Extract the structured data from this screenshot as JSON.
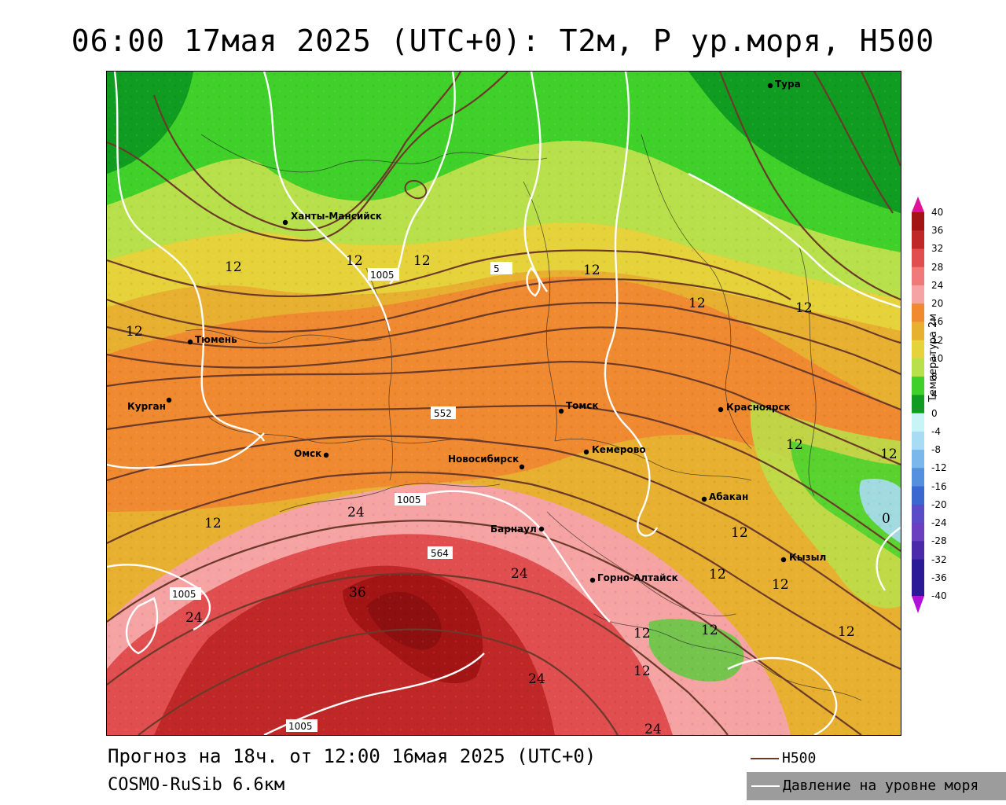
{
  "title": "06:00 17мая 2025 (UTC+0): Т2м, Р ур.моря, Н500",
  "footer": {
    "forecast": "Прогноз на 18ч. от 12:00 16мая 2025 (UTC+0)",
    "model": "COSMO-RuSib 6.6км"
  },
  "legend": {
    "h500": "Н500",
    "pressure": "Давление на уровне моря"
  },
  "colorbar": {
    "title": "Температура 2м",
    "ticks": [
      "40",
      "36",
      "32",
      "28",
      "24",
      "20",
      "16",
      "12",
      "10",
      "8",
      "4",
      "0",
      "-4",
      "-8",
      "-12",
      "-16",
      "-20",
      "-24",
      "-28",
      "-32",
      "-36",
      "-40"
    ],
    "colors": [
      "#e0119a",
      "#a31515",
      "#c02828",
      "#e04e50",
      "#f07a7a",
      "#f5a3a3",
      "#f08a30",
      "#e8b030",
      "#e6d23a",
      "#b8e04a",
      "#3fd12a",
      "#0f9c20",
      "#c8f4f8",
      "#a8dcf4",
      "#7ab8ec",
      "#5590e0",
      "#3868d0",
      "#5a4cc8",
      "#6a40c0",
      "#4a2aa8",
      "#2a1a98",
      "#b010d8"
    ]
  },
  "cities": [
    {
      "name": "Тура"
    },
    {
      "name": "Ханты-Мансийск"
    },
    {
      "name": "Тюмень"
    },
    {
      "name": "Курган"
    },
    {
      "name": "Омск"
    },
    {
      "name": "Новосибирск"
    },
    {
      "name": "Томск"
    },
    {
      "name": "Кемерово"
    },
    {
      "name": "Красноярск"
    },
    {
      "name": "Абакан"
    },
    {
      "name": "Барнаул"
    },
    {
      "name": "Горно-Алтайск"
    },
    {
      "name": "Кызыл"
    }
  ],
  "isotherm_labels": [
    "12",
    "12",
    "12",
    "12",
    "12",
    "12",
    "12",
    "12",
    "12",
    "12",
    "12",
    "12",
    "12",
    "12",
    "12",
    "12",
    "12",
    "24",
    "24",
    "24",
    "24",
    "24",
    "36",
    "0"
  ],
  "h500_labels": [
    "552",
    "564",
    "5"
  ],
  "pressure_labels": [
    "1005",
    "1005",
    "1005",
    "1005"
  ]
}
